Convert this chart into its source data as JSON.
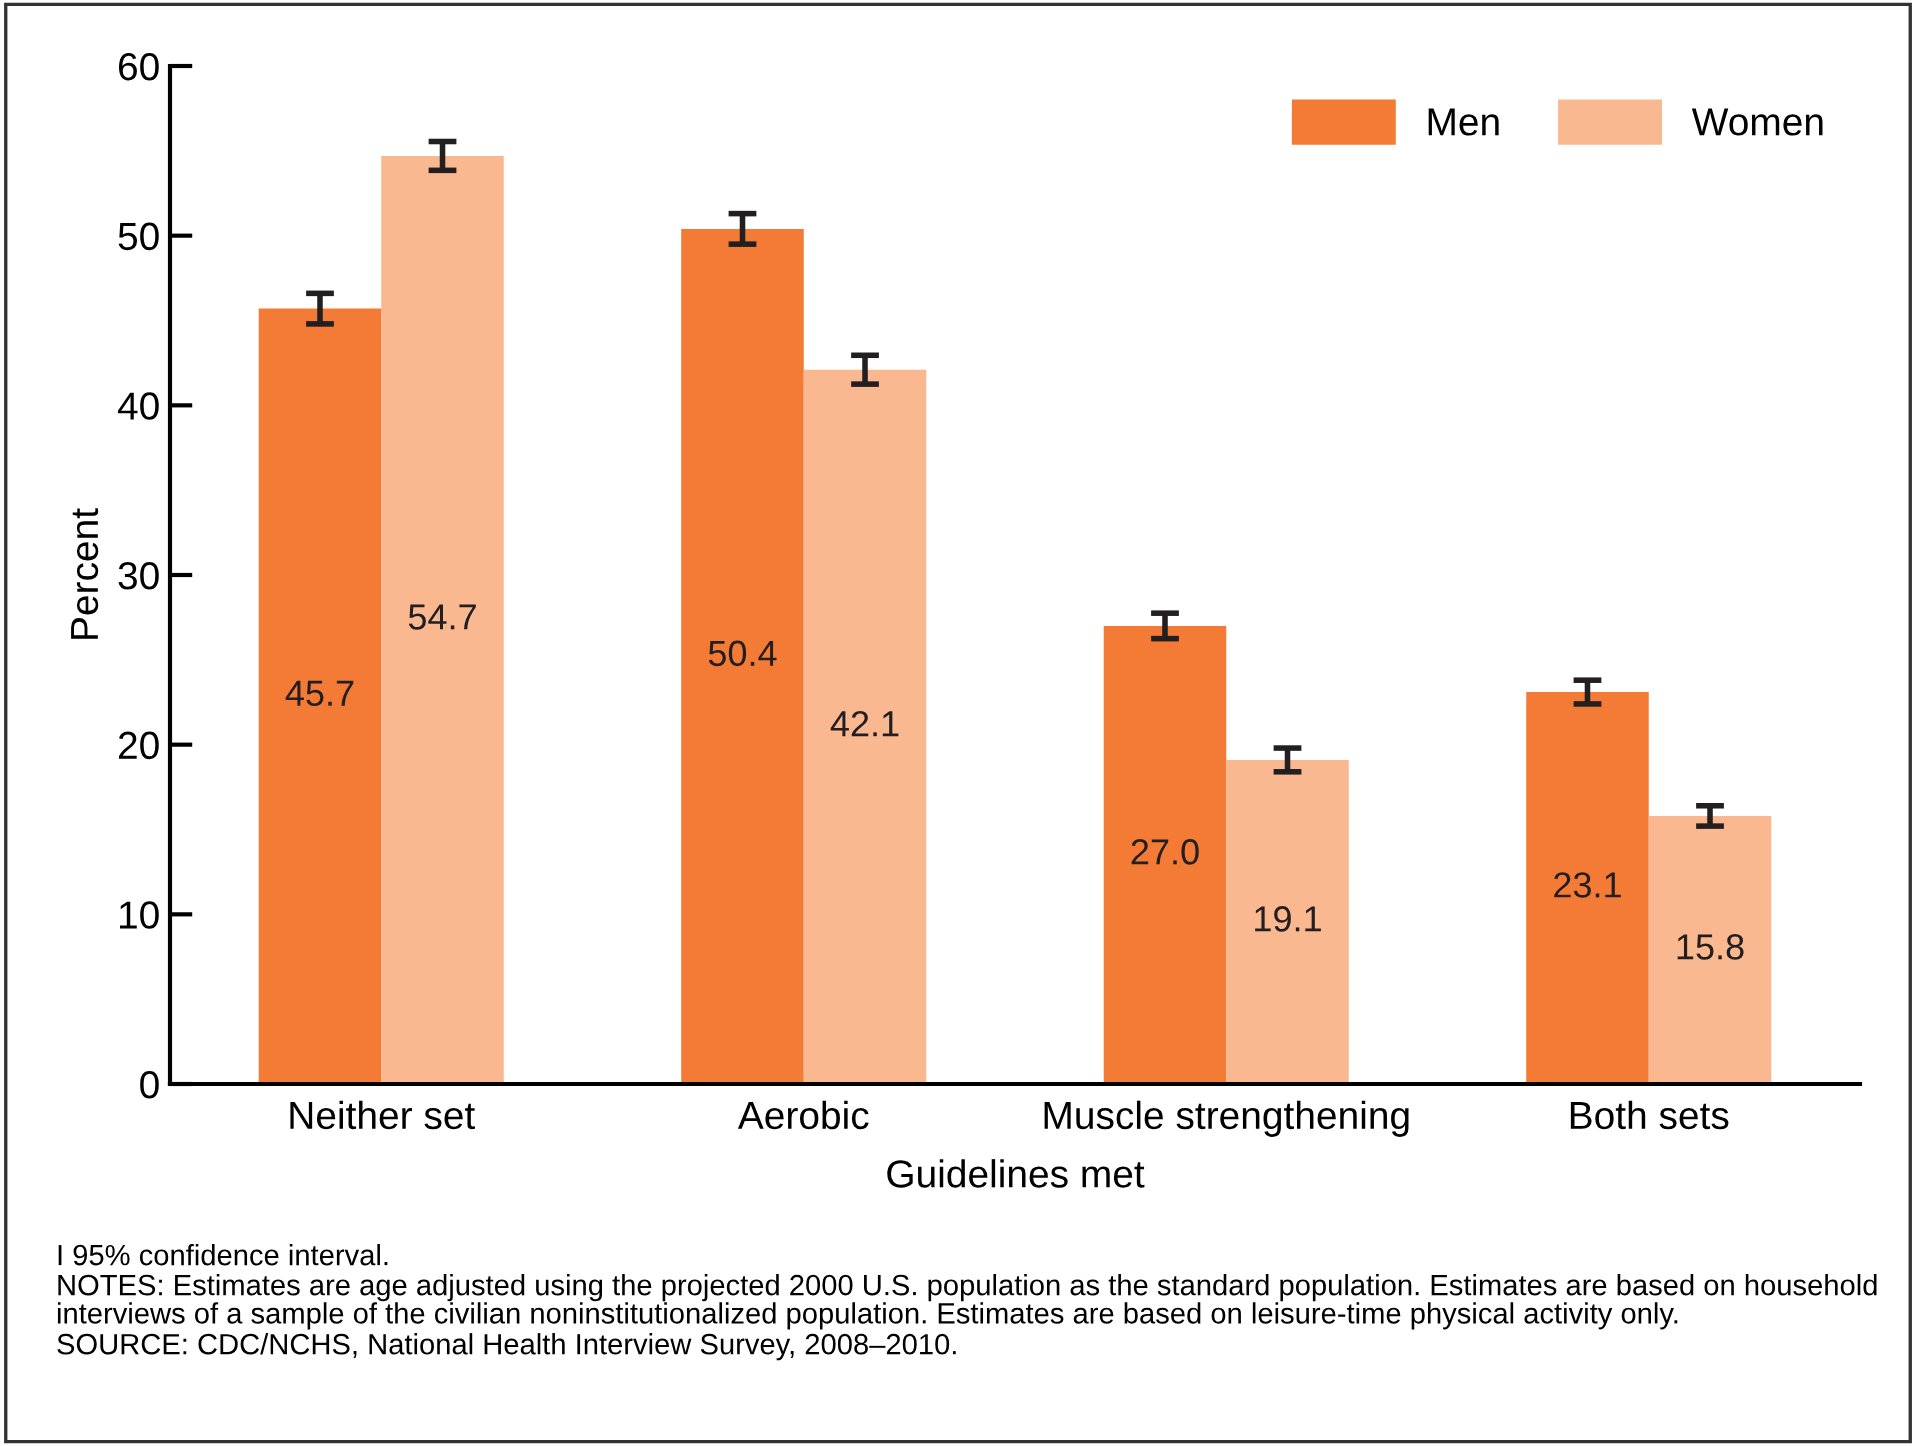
{
  "chart_data": {
    "type": "bar",
    "xlabel": "Guidelines met",
    "ylabel": "Percent",
    "categories": [
      "Neither set",
      "Aerobic",
      "Muscle strengthening",
      "Both sets"
    ],
    "series": [
      {
        "name": "Men",
        "color": "#f47b35",
        "values": [
          45.7,
          50.4,
          27.0,
          23.1
        ],
        "value_labels": [
          "45.7",
          "50.4",
          "27.0",
          "23.1"
        ],
        "errors": [
          0.9,
          0.9,
          0.75,
          0.7
        ]
      },
      {
        "name": "Women",
        "color": "#fab891",
        "values": [
          54.7,
          42.1,
          19.1,
          15.8
        ],
        "value_labels": [
          "54.7",
          "42.1",
          "19.1",
          "15.8"
        ],
        "errors": [
          0.85,
          0.85,
          0.7,
          0.6
        ]
      }
    ],
    "ylim": [
      0,
      60
    ],
    "yticks": [
      0,
      10,
      20,
      30,
      40,
      50,
      60
    ],
    "grid": false,
    "legend": "top right",
    "annotations": [
      "I 95% confidence interval.",
      "NOTES: Estimates are age adjusted using the projected 2000 U.S. population as the standard population. Estimates are based on household interviews of a sample of the civilian noninstitutionalized population. Estimates are based on leisure-time physical activity only.",
      "SOURCE: CDC/NCHS, National Health Interview Survey, 2008–2010."
    ]
  }
}
